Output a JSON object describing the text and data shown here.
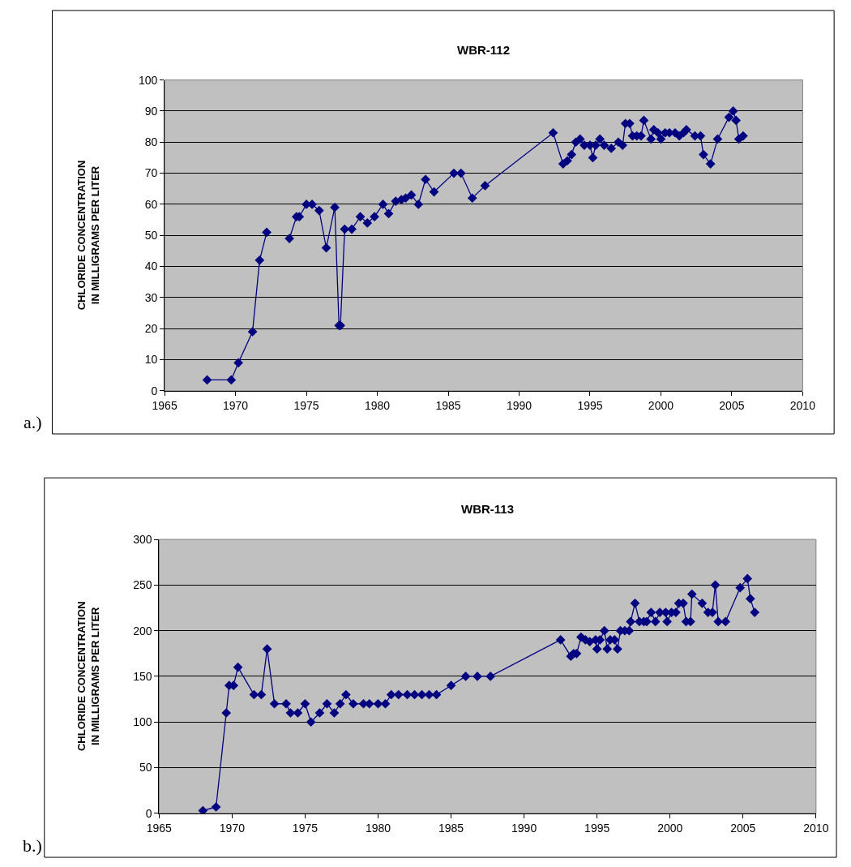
{
  "chart_data": [
    {
      "type": "line",
      "title": "WBR-112",
      "ylabel": "CHLORIDE CONCENTRATION\nIN MILLIGRAMS PER LITER",
      "annotations": [
        "a.)"
      ],
      "xlim": [
        1965,
        2010
      ],
      "xticks": [
        1965,
        1970,
        1975,
        1980,
        1985,
        1990,
        1995,
        2000,
        2005,
        2010
      ],
      "ylim": [
        0,
        100
      ],
      "yticks": [
        0,
        10,
        20,
        30,
        40,
        50,
        60,
        70,
        80,
        90,
        100
      ],
      "grid": "y",
      "marker": "diamond",
      "line_style": "solid",
      "series": [
        {
          "color": "#000080",
          "x": [
            1968.0,
            1969.7,
            1970.2,
            1971.2,
            1971.7,
            1972.2,
            1973.0,
            1973.8,
            1974.3,
            1974.5,
            1975.0,
            1975.4,
            1975.9,
            1976.4,
            1977.0,
            1977.3,
            1977.4,
            1977.7,
            1978.2,
            1978.8,
            1979.3,
            1979.8,
            1980.4,
            1980.8,
            1981.3,
            1981.7,
            1982.0,
            1982.4,
            1982.9,
            1983.4,
            1984.0,
            1985.4,
            1985.9,
            1986.7,
            1987.6,
            1992.4,
            1993.1,
            1993.4,
            1993.7,
            1994.0,
            1994.3,
            1994.6,
            1995.0,
            1995.2,
            1995.4,
            1995.7,
            1996.0,
            1996.5,
            1997.0,
            1997.3,
            1997.5,
            1997.8,
            1998.0,
            1998.3,
            1998.6,
            1998.8,
            1999.3,
            1999.5,
            1999.8,
            2000.0,
            2000.3,
            2000.6,
            2001.0,
            2001.3,
            2001.6,
            2001.8,
            2002.4,
            2002.8,
            2003.0,
            2003.5,
            2004.0,
            2004.8,
            2005.1,
            2005.3,
            2005.5,
            2005.8
          ],
          "values": [
            3.5,
            3.5,
            9,
            19,
            42,
            51,
            null,
            49,
            56,
            56,
            60,
            60,
            58,
            46,
            59,
            21,
            21,
            52,
            52,
            56,
            54,
            56,
            60,
            57,
            61,
            61.5,
            62,
            63,
            60,
            68,
            64,
            70,
            70,
            62,
            66,
            83,
            73,
            74,
            76,
            80,
            81,
            79,
            79,
            75,
            79,
            81,
            79,
            78,
            80,
            79,
            86,
            86,
            82,
            82,
            82,
            87,
            81,
            84,
            83,
            81,
            83,
            83,
            83,
            82,
            83,
            84,
            82,
            82,
            76,
            73,
            81,
            88,
            90,
            87,
            81,
            82
          ]
        }
      ]
    },
    {
      "type": "line",
      "title": "WBR-113",
      "ylabel": "CHLORIDE CONCENTRATION\nIN MILLIGRAMS PER LITER",
      "annotations": [
        "b.)"
      ],
      "xlim": [
        1965,
        2010
      ],
      "xticks": [
        1965,
        1970,
        1975,
        1980,
        1985,
        1990,
        1995,
        2000,
        2005,
        2010
      ],
      "ylim": [
        0,
        300
      ],
      "yticks": [
        0,
        50,
        100,
        150,
        200,
        250,
        300
      ],
      "grid": "y",
      "marker": "diamond",
      "line_style": "solid",
      "series": [
        {
          "color": "#000080",
          "x": [
            1968.0,
            1968.9,
            1969.6,
            1969.8,
            1970.1,
            1970.4,
            1971.5,
            1972.0,
            1972.4,
            1972.9,
            1973.7,
            1974.0,
            1974.5,
            1975.0,
            1975.4,
            1976.0,
            1976.5,
            1977.0,
            1977.4,
            1977.8,
            1978.3,
            1979.0,
            1979.4,
            1980.0,
            1980.5,
            1980.9,
            1981.4,
            1982.0,
            1982.5,
            1983.0,
            1983.5,
            1984.0,
            1985.0,
            1986.0,
            1986.8,
            1987.7,
            1992.5,
            1993.2,
            1993.4,
            1993.6,
            1993.9,
            1994.2,
            1994.5,
            1994.9,
            1995.0,
            1995.2,
            1995.5,
            1995.7,
            1995.9,
            1996.2,
            1996.4,
            1996.6,
            1996.9,
            1997.2,
            1997.3,
            1997.6,
            1997.9,
            1998.2,
            1998.4,
            1998.7,
            1999.0,
            1999.3,
            1999.7,
            1999.8,
            2000.1,
            2000.4,
            2000.6,
            2000.9,
            2001.1,
            2001.4,
            2001.5,
            2002.2,
            2002.6,
            2002.9,
            2003.1,
            2003.3,
            2003.8,
            2004.8,
            2005.3,
            2005.5,
            2005.8
          ],
          "values": [
            3,
            7,
            110,
            140,
            140,
            160,
            130,
            130,
            180,
            120,
            120,
            110,
            110,
            120,
            100,
            110,
            120,
            110,
            120,
            130,
            120,
            120,
            120,
            120,
            120,
            130,
            130,
            130,
            130,
            130,
            130,
            130,
            140,
            150,
            150,
            150,
            190,
            172,
            175,
            175,
            193,
            190,
            188,
            190,
            180,
            190,
            200,
            180,
            190,
            190,
            180,
            200,
            200,
            200,
            210,
            230,
            210,
            210,
            210,
            220,
            210,
            220,
            220,
            210,
            220,
            220,
            230,
            230,
            210,
            210,
            240,
            230,
            220,
            220,
            250,
            210,
            210,
            247,
            257,
            235,
            220
          ]
        }
      ]
    }
  ]
}
